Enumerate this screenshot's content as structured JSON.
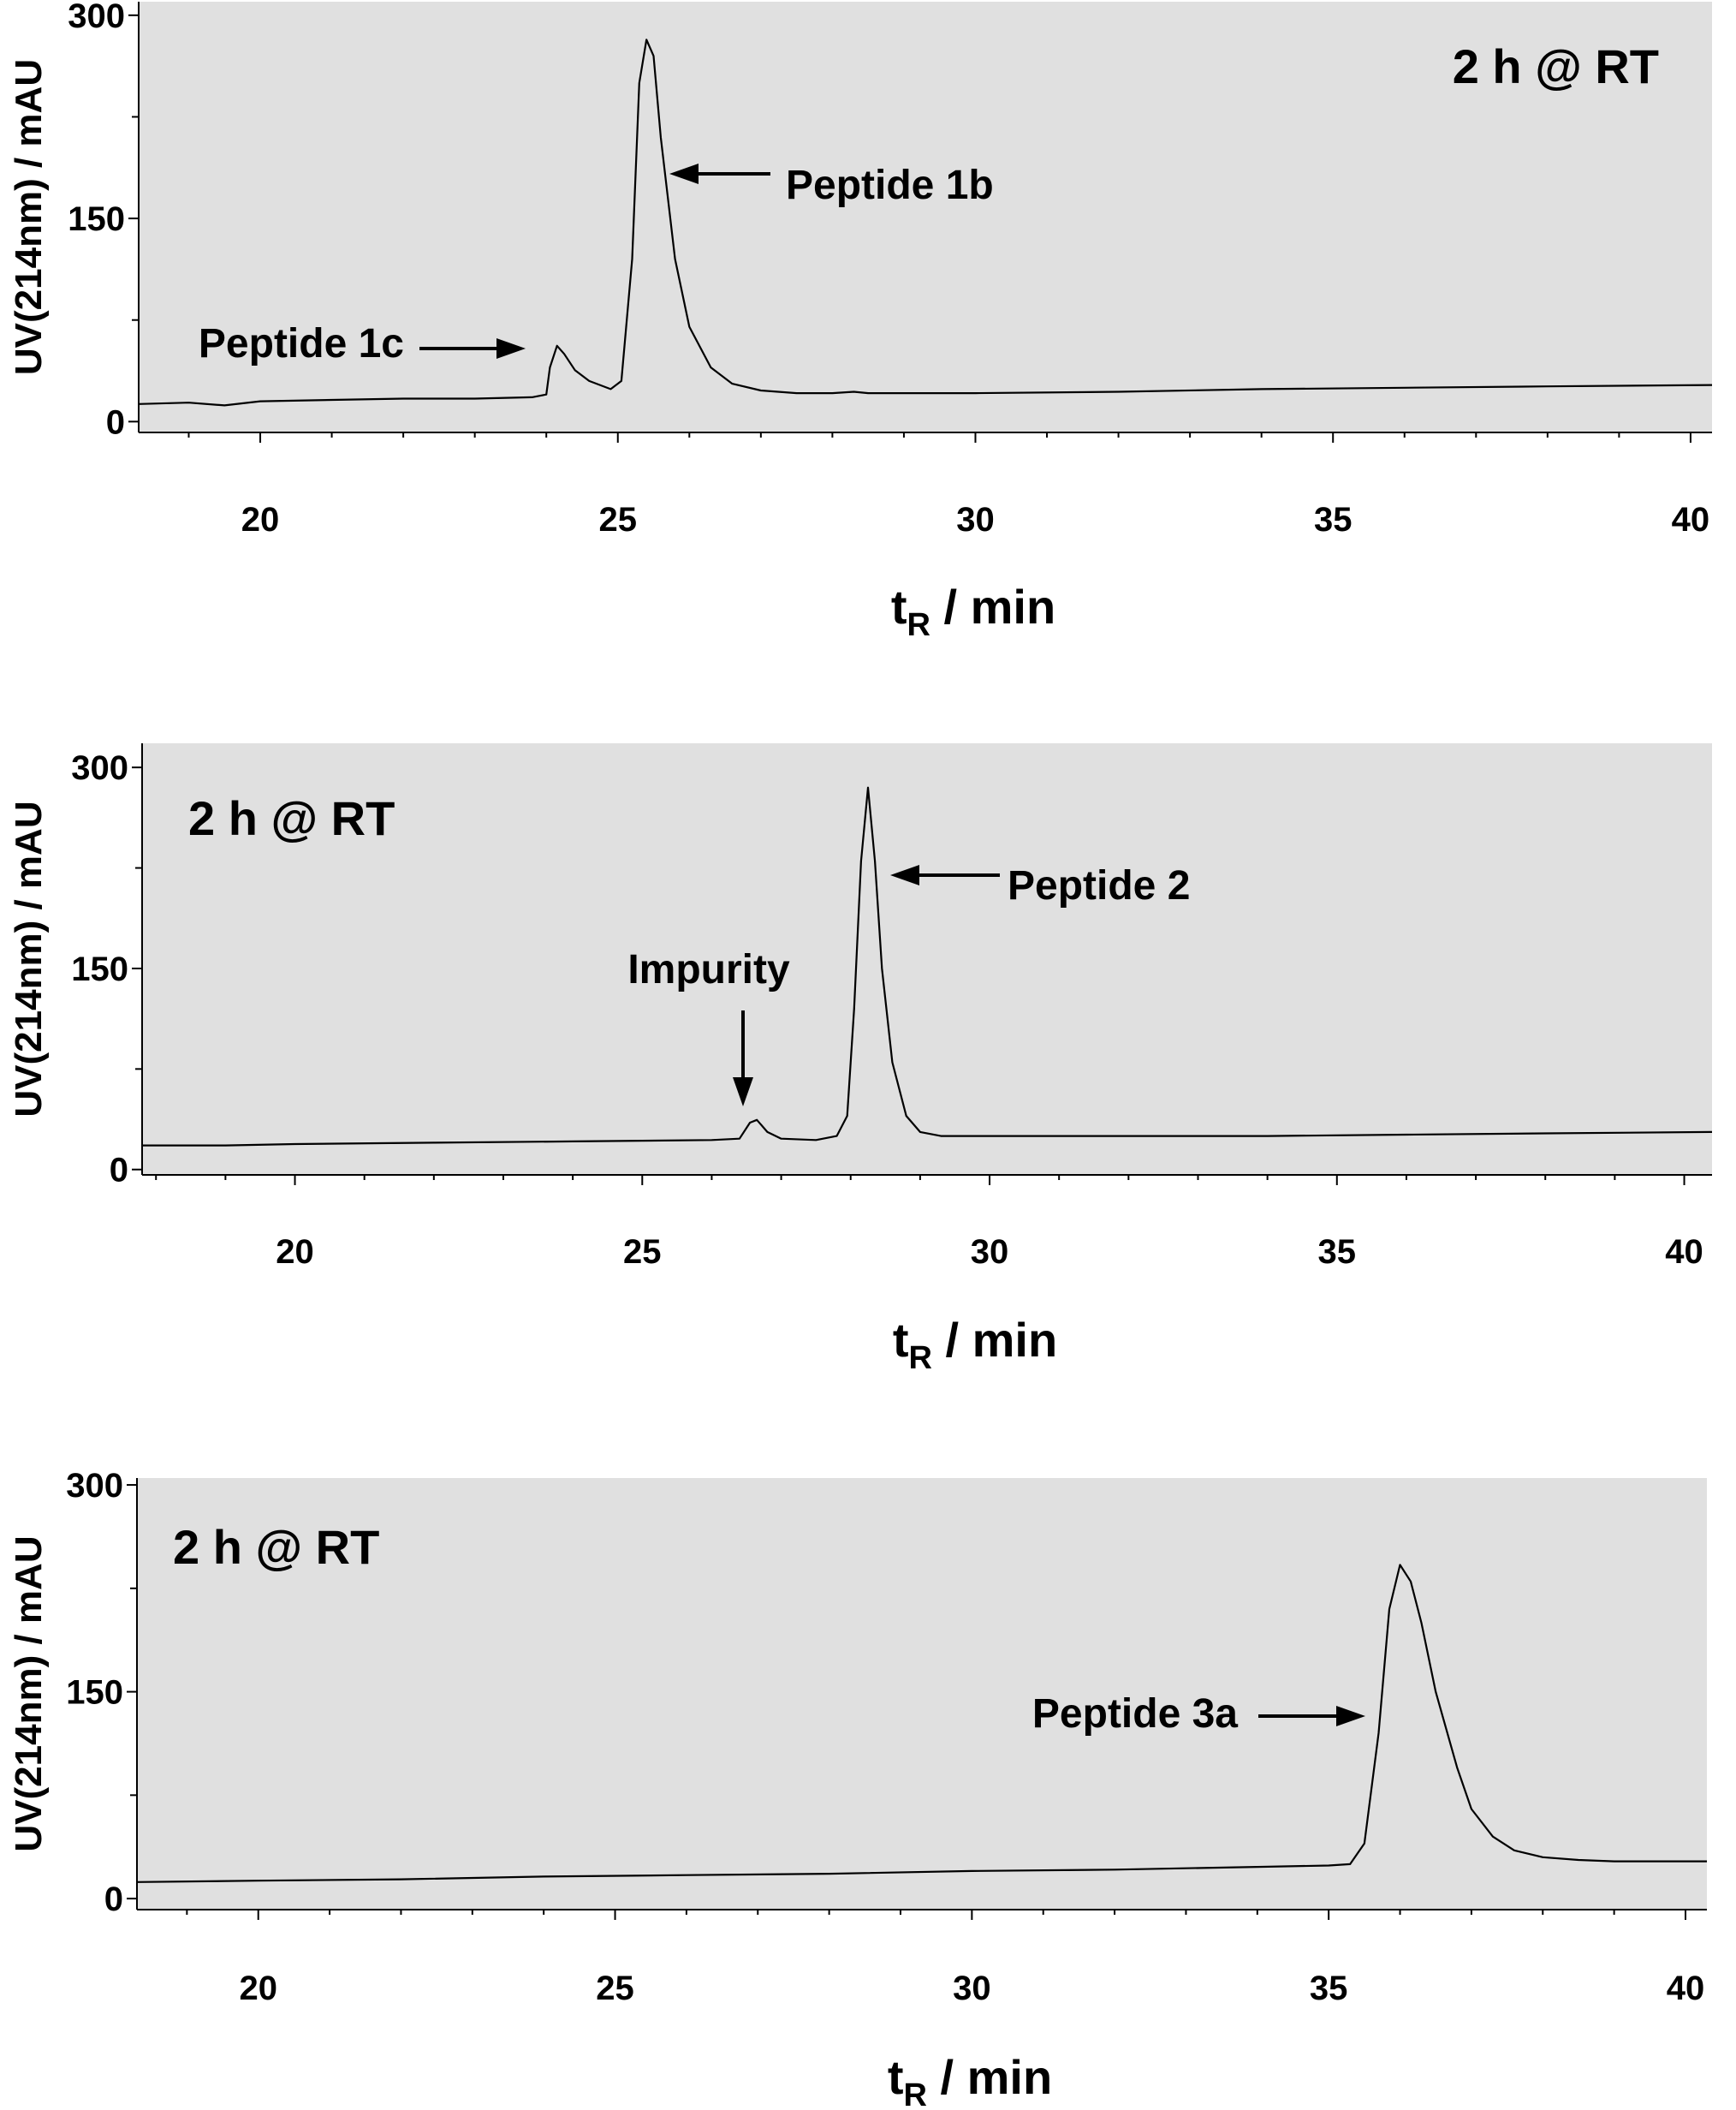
{
  "chart_data": [
    {
      "type": "line",
      "title": "",
      "xlabel": "t",
      "xlabel_sub": "R",
      "xlabel_rest": " / min",
      "ylabel": "UV(214nm) / mAU",
      "condition": "2 h @ RT",
      "xlim": [
        18.3,
        40.3
      ],
      "ylim": [
        -8,
        310
      ],
      "xticks": [
        20,
        25,
        30,
        35,
        40
      ],
      "xtick_labels": [
        "20",
        "25",
        "30",
        "35",
        "40"
      ],
      "yticks": [
        0,
        150,
        300
      ],
      "ytick_labels": [
        "0",
        "150",
        "300"
      ],
      "grid": false,
      "legend": "none",
      "series": [
        {
          "x": [
            18.3,
            19.0,
            19.5,
            20.0,
            21.0,
            22.0,
            23.0,
            23.8,
            24.0,
            24.05,
            24.15,
            24.25,
            24.4,
            24.6,
            24.9,
            25.05,
            25.2,
            25.3,
            25.4,
            25.5,
            25.6,
            25.8,
            26.0,
            26.3,
            26.6,
            27.0,
            27.5,
            28.0,
            28.3,
            28.5,
            29.0,
            30.0,
            32.0,
            34.0,
            36.0,
            38.0,
            40.3
          ],
          "y": [
            13,
            14,
            12,
            15,
            16,
            17,
            17,
            18,
            20,
            40,
            56,
            50,
            38,
            30,
            24,
            30,
            120,
            250,
            282,
            270,
            210,
            120,
            70,
            40,
            28,
            23,
            21,
            21,
            22,
            21,
            21,
            21,
            22,
            24,
            25,
            26,
            27
          ]
        }
      ],
      "annotations": [
        {
          "text": "Peptide 1b",
          "x": 25.55,
          "y": 180
        },
        {
          "text": "Peptide 1c",
          "x": 24.1,
          "y": 52
        }
      ]
    },
    {
      "type": "line",
      "title": "",
      "xlabel": "t",
      "xlabel_sub": "R",
      "xlabel_rest": " / min",
      "ylabel": "UV(214nm) / mAU",
      "condition": "2 h @ RT",
      "xlim": [
        17.8,
        40.4
      ],
      "ylim": [
        -4,
        318
      ],
      "xticks": [
        20,
        25,
        30,
        35,
        40
      ],
      "xtick_labels": [
        "20",
        "25",
        "30",
        "35",
        "40"
      ],
      "yticks": [
        0,
        150,
        300
      ],
      "ytick_labels": [
        "0",
        "150",
        "300"
      ],
      "grid": false,
      "legend": "none",
      "series": [
        {
          "x": [
            17.8,
            19.0,
            20.0,
            22.0,
            24.0,
            26.0,
            26.4,
            26.55,
            26.65,
            26.8,
            27.0,
            27.5,
            27.8,
            27.95,
            28.05,
            28.15,
            28.25,
            28.35,
            28.45,
            28.6,
            28.8,
            29.0,
            29.3,
            30.0,
            32.0,
            34.0,
            36.0,
            38.0,
            40.4
          ],
          "y": [
            18,
            18,
            19,
            20,
            21,
            22,
            23,
            35,
            37,
            28,
            23,
            22,
            25,
            40,
            120,
            230,
            285,
            230,
            150,
            80,
            40,
            28,
            25,
            25,
            25,
            25,
            26,
            27,
            28
          ]
        }
      ],
      "annotations": [
        {
          "text": "Peptide 2",
          "x": 28.3,
          "y": 225
        },
        {
          "text": "Impurity",
          "x": 26.6,
          "y": 45
        }
      ]
    },
    {
      "type": "line",
      "title": "",
      "xlabel": "t",
      "xlabel_sub": "R",
      "xlabel_rest": " / min",
      "ylabel": "UV(214nm) / mAU",
      "condition": "2 h @ RT",
      "xlim": [
        18.3,
        40.3
      ],
      "ylim": [
        -8,
        305
      ],
      "xticks": [
        20,
        25,
        30,
        35,
        40
      ],
      "xtick_labels": [
        "20",
        "25",
        "30",
        "35",
        "40"
      ],
      "yticks": [
        0,
        150,
        300
      ],
      "ytick_labels": [
        "0",
        "150",
        "300"
      ],
      "grid": false,
      "legend": "none",
      "series": [
        {
          "x": [
            18.3,
            20.0,
            22.0,
            24.0,
            26.0,
            28.0,
            30.0,
            32.0,
            34.0,
            35.0,
            35.3,
            35.5,
            35.7,
            35.85,
            36.0,
            36.15,
            36.3,
            36.5,
            36.8,
            37.0,
            37.3,
            37.6,
            38.0,
            38.5,
            39.0,
            40.3
          ],
          "y": [
            12,
            13,
            14,
            16,
            17,
            18,
            20,
            21,
            23,
            24,
            25,
            40,
            120,
            210,
            242,
            230,
            200,
            150,
            95,
            65,
            45,
            35,
            30,
            28,
            27,
            27
          ]
        }
      ],
      "annotations": [
        {
          "text": "Peptide 3a",
          "x": 35.55,
          "y": 128
        }
      ]
    }
  ]
}
